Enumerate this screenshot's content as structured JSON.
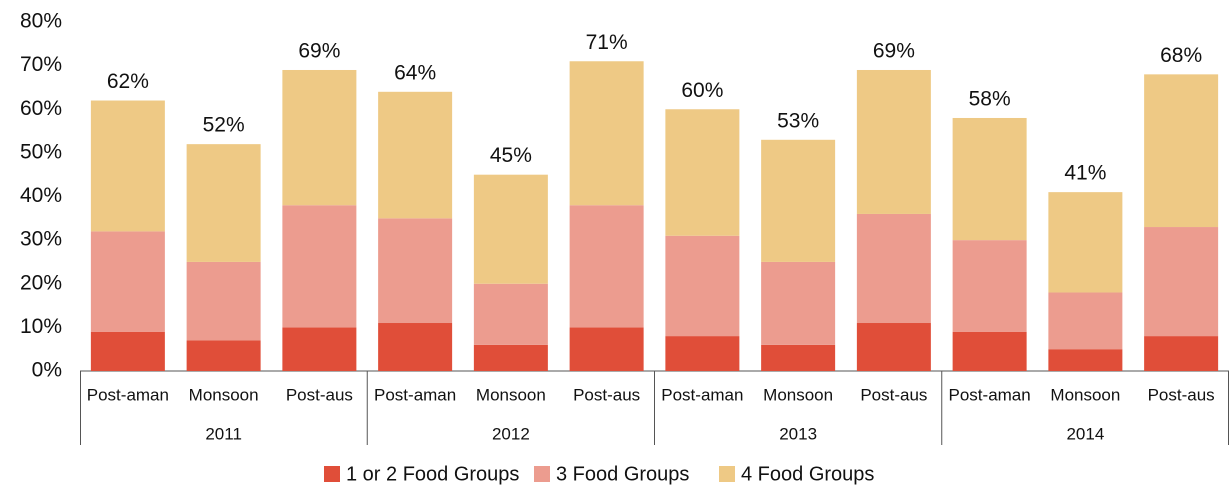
{
  "chart_data": {
    "type": "stacked_bar",
    "categories": [
      "Post-aman",
      "Monsoon",
      "Post-aus",
      "Post-aman",
      "Monsoon",
      "Post-aus",
      "Post-aman",
      "Monsoon",
      "Post-aus",
      "Post-aman",
      "Monsoon",
      "Post-aus"
    ],
    "groups": [
      "2011",
      "2012",
      "2013",
      "2014"
    ],
    "series": [
      {
        "name": "1 or 2 Food Groups",
        "color": "#e04e39",
        "values": [
          9,
          7,
          10,
          11,
          6,
          10,
          8,
          6,
          11,
          9,
          5,
          8
        ]
      },
      {
        "name": "3 Food Groups",
        "color": "#ec9c8f",
        "values": [
          23,
          18,
          28,
          24,
          14,
          28,
          23,
          19,
          25,
          21,
          13,
          25
        ]
      },
      {
        "name": "4 Food Groups",
        "color": "#eec985",
        "values": [
          30,
          27,
          31,
          29,
          25,
          33,
          29,
          28,
          33,
          28,
          23,
          35
        ]
      }
    ],
    "total_labels": [
      "62%",
      "52%",
      "69%",
      "64%",
      "45%",
      "71%",
      "60%",
      "53%",
      "69%",
      "58%",
      "41%",
      "68%"
    ],
    "ylim": [
      0,
      80
    ],
    "yticks": [
      {
        "value": 0,
        "label": "0%"
      },
      {
        "value": 10,
        "label": "10%"
      },
      {
        "value": 20,
        "label": "20%"
      },
      {
        "value": 30,
        "label": "30%"
      },
      {
        "value": 40,
        "label": "40%"
      },
      {
        "value": 50,
        "label": "50%"
      },
      {
        "value": 60,
        "label": "60%"
      },
      {
        "value": 70,
        "label": "70%"
      },
      {
        "value": 80,
        "label": "80%"
      }
    ],
    "grid": false,
    "legend": "bottom"
  }
}
